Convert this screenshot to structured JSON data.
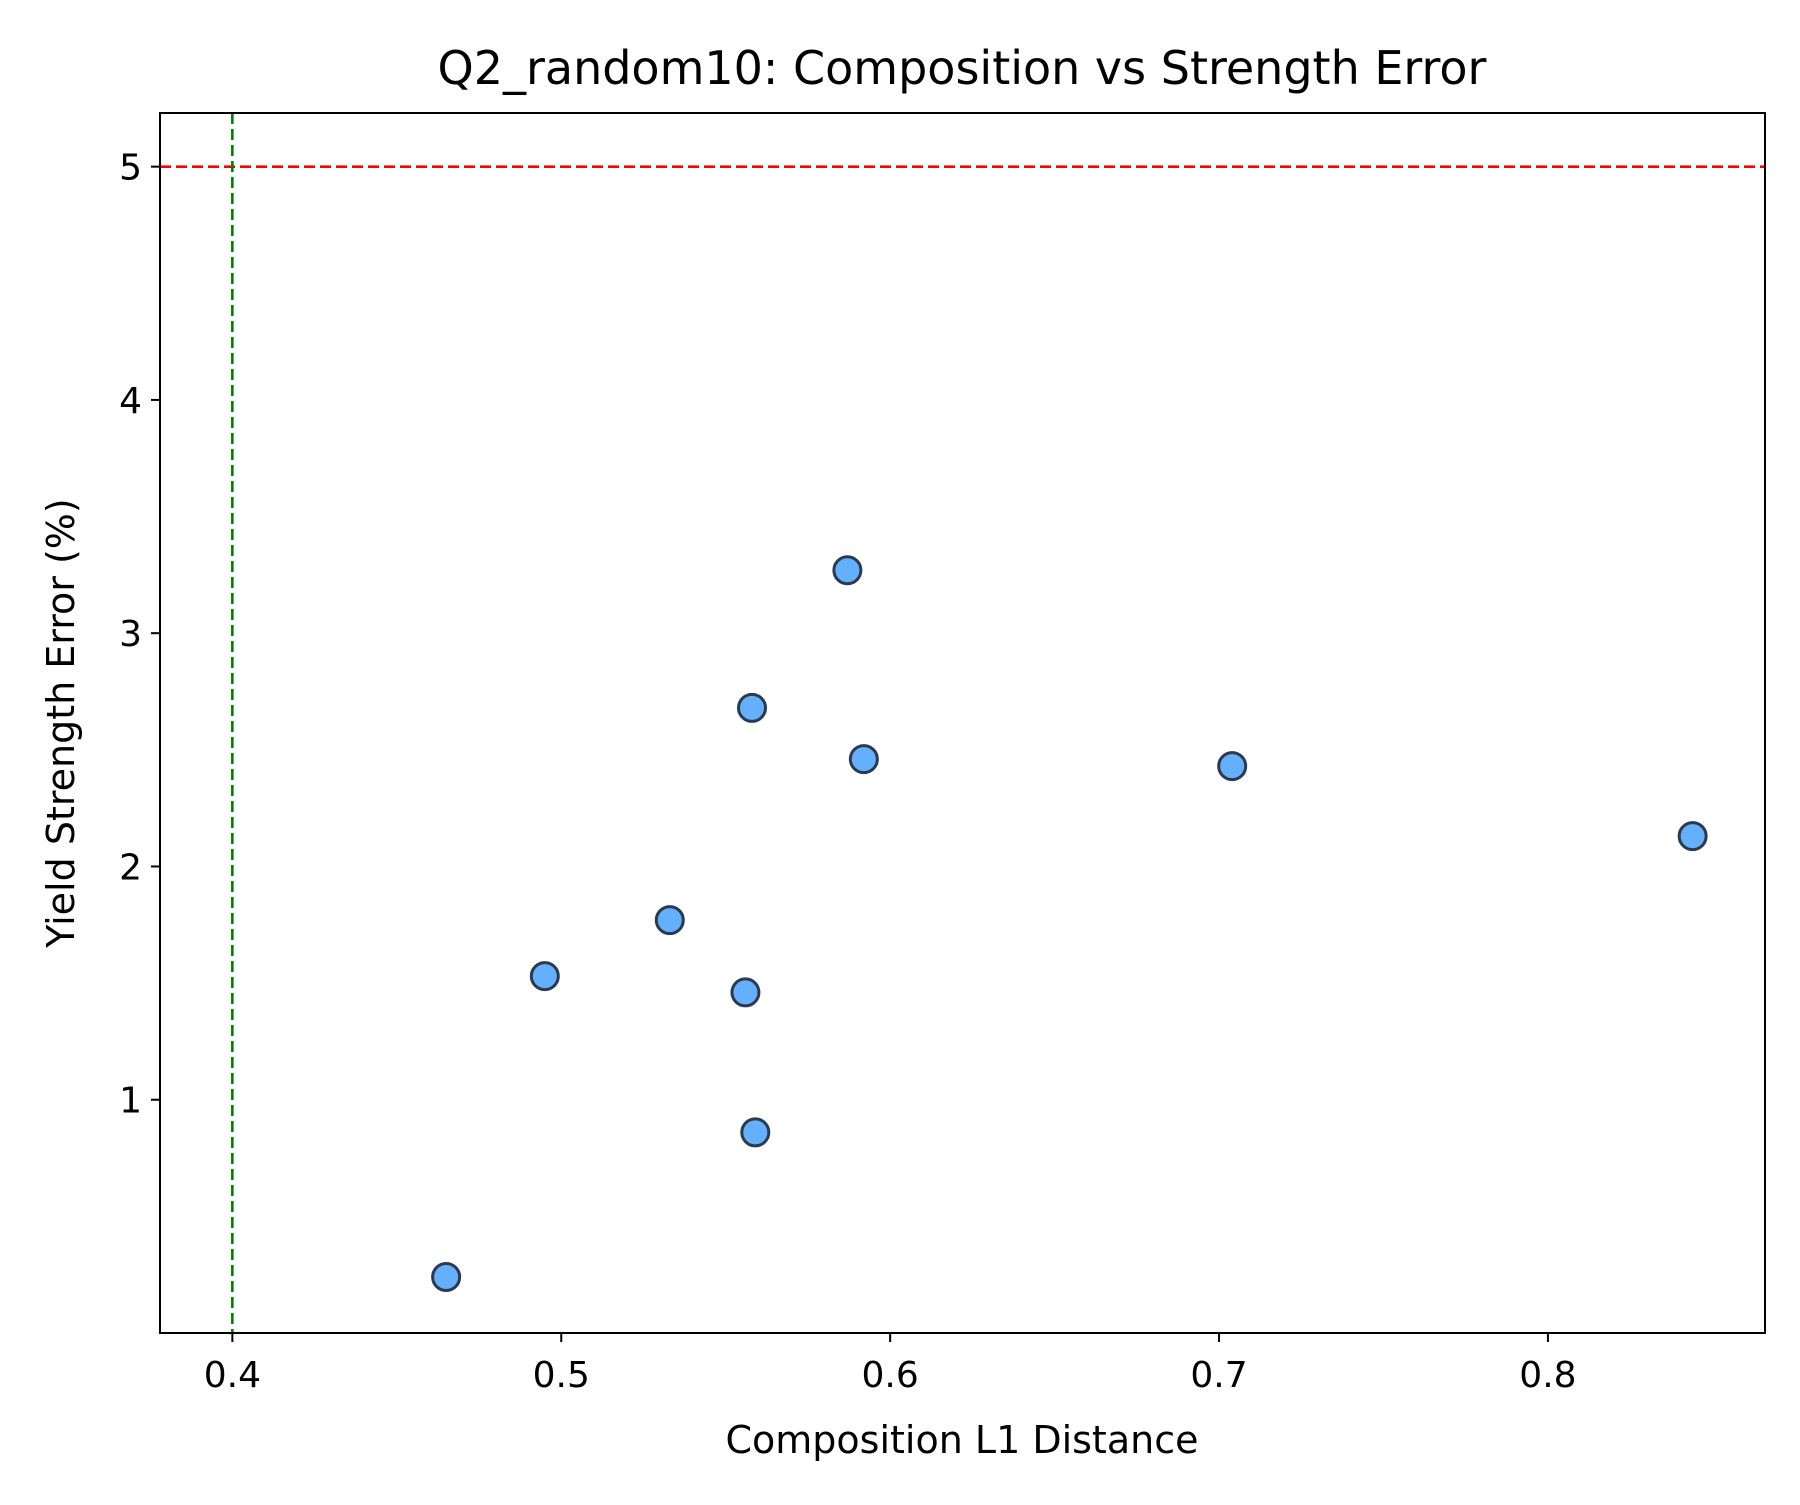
{
  "chart_data": {
    "type": "scatter",
    "title": "Q2_random10: Composition vs Strength Error",
    "xlabel": "Composition L1 Distance",
    "ylabel": "Yield Strength Error (%)",
    "xlim": [
      0.378,
      0.866
    ],
    "ylim": [
      0.0,
      5.23
    ],
    "xticks": [
      0.4,
      0.5,
      0.6,
      0.7,
      0.8
    ],
    "xtick_labels": [
      "0.4",
      "0.5",
      "0.6",
      "0.7",
      "0.8"
    ],
    "yticks": [
      1,
      2,
      3,
      4,
      5
    ],
    "ytick_labels": [
      "1",
      "2",
      "3",
      "4",
      "5"
    ],
    "grid": false,
    "reference_lines": [
      {
        "orientation": "horizontal",
        "value": 5.0,
        "color": "#ff0000",
        "style": "dashed"
      },
      {
        "orientation": "vertical",
        "value": 0.4,
        "color": "#008000",
        "style": "dashed"
      }
    ],
    "points": [
      {
        "x": 0.465,
        "y": 0.24
      },
      {
        "x": 0.495,
        "y": 1.53
      },
      {
        "x": 0.533,
        "y": 1.77
      },
      {
        "x": 0.556,
        "y": 1.46
      },
      {
        "x": 0.558,
        "y": 2.68
      },
      {
        "x": 0.559,
        "y": 0.86
      },
      {
        "x": 0.587,
        "y": 3.27
      },
      {
        "x": 0.592,
        "y": 2.46
      },
      {
        "x": 0.704,
        "y": 2.43
      },
      {
        "x": 0.844,
        "y": 2.13
      }
    ],
    "marker_color": "#64b0ff",
    "marker_edge_color": "#2b3a4d"
  }
}
